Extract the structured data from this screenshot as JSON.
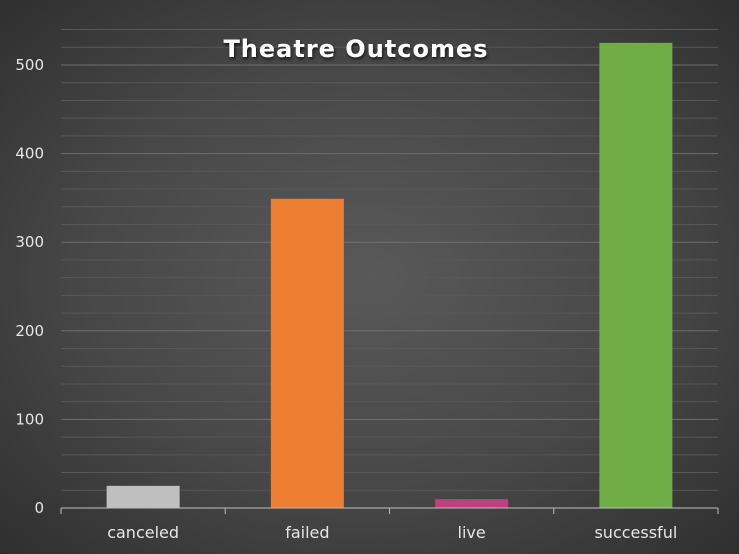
{
  "chart_data": {
    "type": "bar",
    "title": "Theatre Outcomes",
    "xlabel": "",
    "ylabel": "",
    "categories": [
      "canceled",
      "failed",
      "live",
      "successful"
    ],
    "values": [
      25,
      349,
      10,
      525
    ],
    "ylim": [
      0,
      550
    ],
    "yticks": [
      0,
      100,
      200,
      300,
      400,
      500
    ],
    "grid": true,
    "legend": "none",
    "colors": [
      "#bfbfbf",
      "#ed7d31",
      "#c0407c",
      "#70ad47"
    ]
  }
}
